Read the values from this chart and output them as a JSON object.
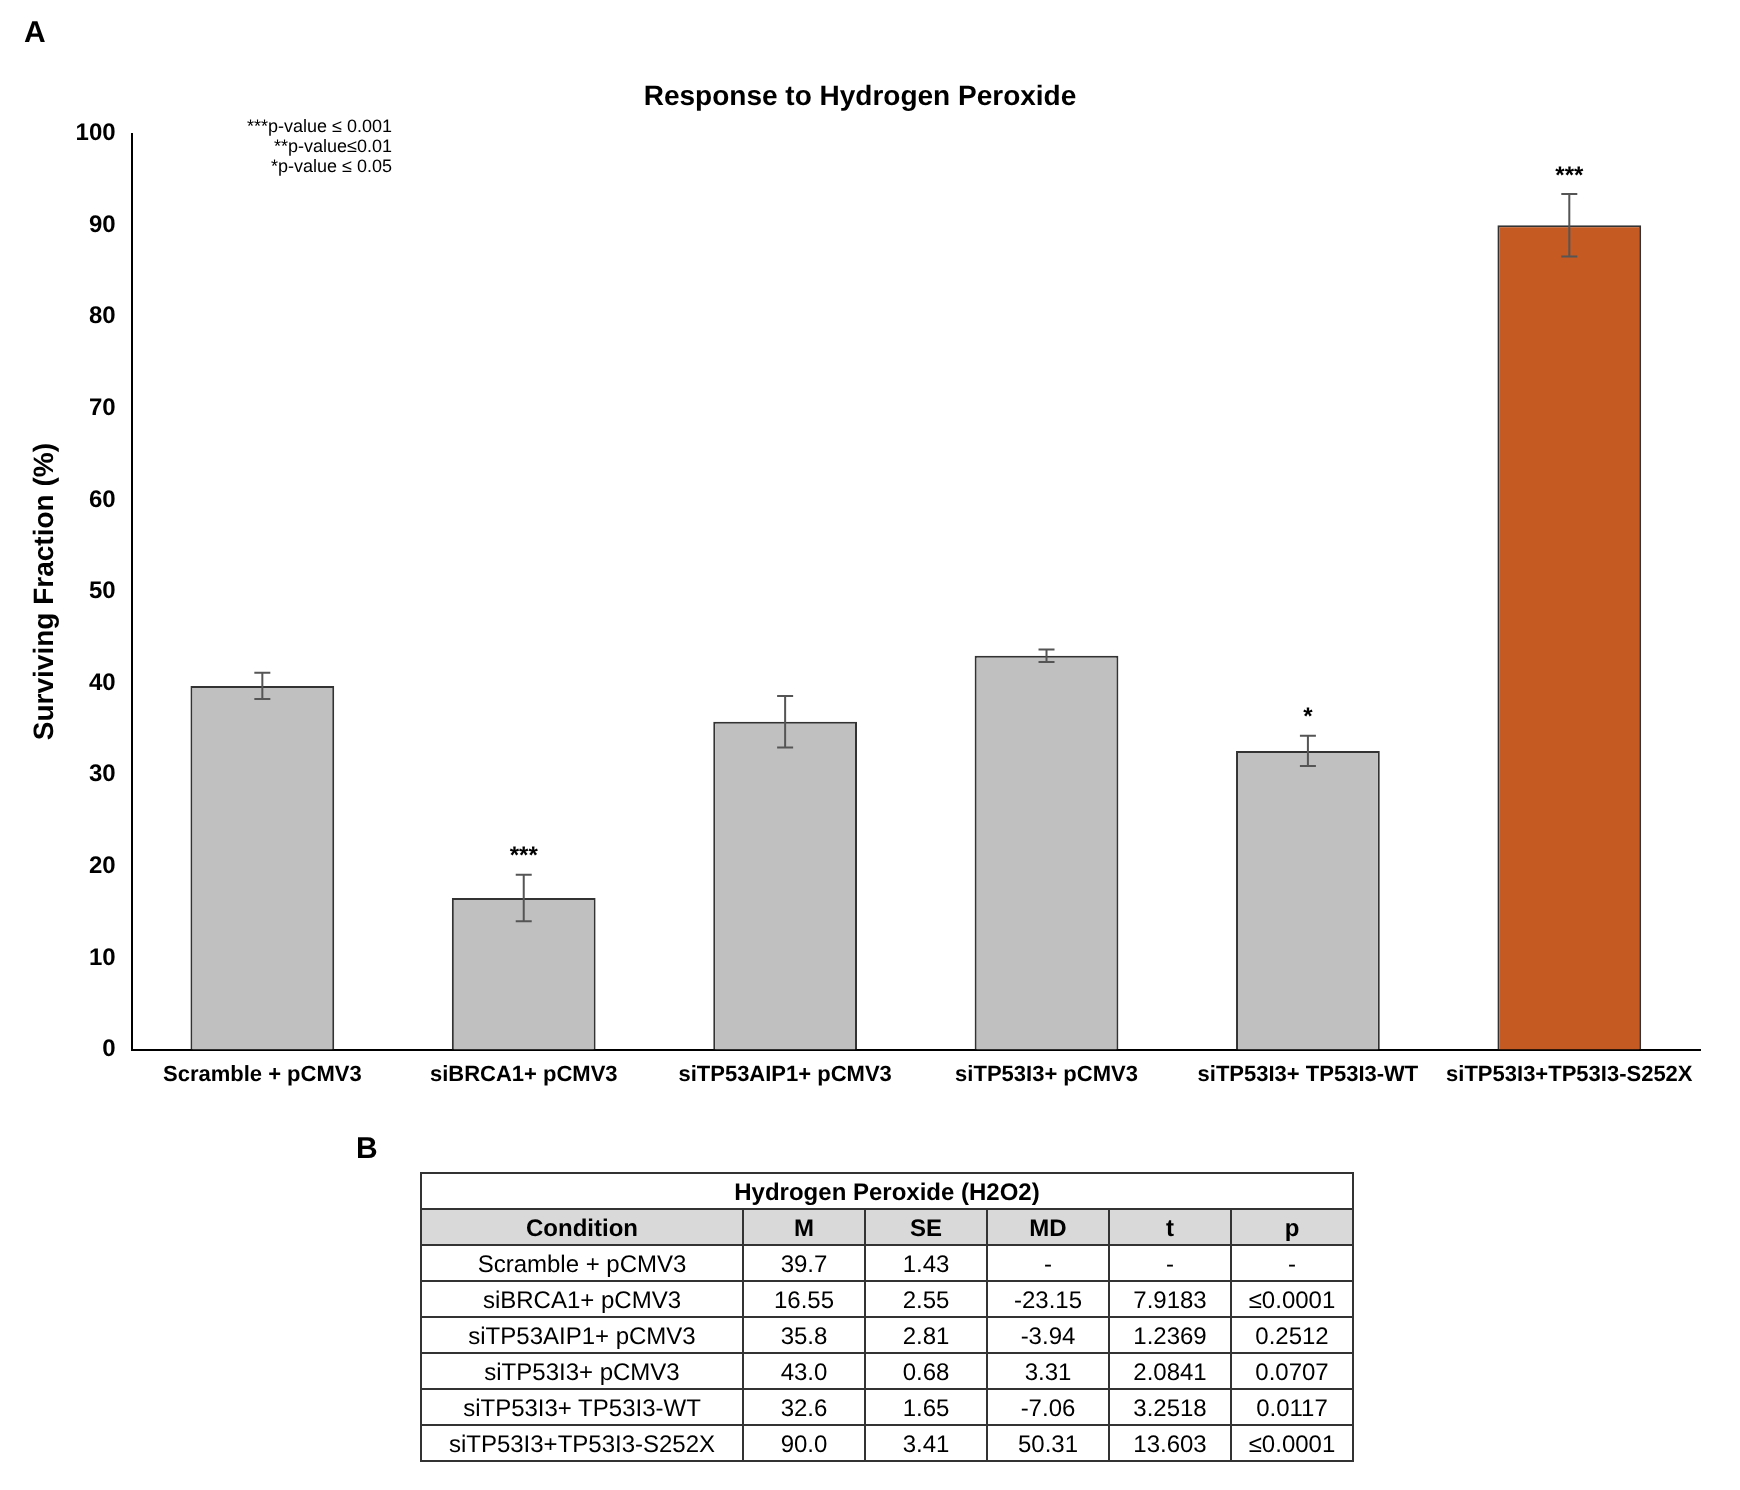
{
  "chart_data": {
    "type": "bar",
    "title": "Response to Hydrogen Peroxide",
    "ylabel": "Surviving Fraction (%)",
    "categories": [
      "Scramble + pCMV3",
      "siBRCA1+ pCMV3",
      "siTP53AIP1+ pCMV3",
      "siTP53I3+ pCMV3",
      "siTP53I3+ TP53I3-WT",
      "siTP53I3+TP53I3-S252X"
    ],
    "values": [
      39.7,
      16.55,
      35.8,
      43,
      32.6,
      90
    ],
    "errors": [
      1.43,
      2.55,
      2.81,
      0.68,
      1.65,
      3.41
    ],
    "colors": [
      "#c0c0c0",
      "#c0c0c0",
      "#c0c0c0",
      "#c0c0c0",
      "#c0c0c0",
      "#c55a22"
    ],
    "ylim": [
      0,
      100
    ],
    "yticks": [
      0,
      10,
      20,
      30,
      40,
      50,
      60,
      70,
      80,
      90,
      100
    ],
    "grid": false,
    "legend": false,
    "annotations": [
      "A",
      "***p-value ≤ 0.001",
      "**p-value≤0.01",
      "*p-value ≤ 0.05",
      "B",
      "Hydrogen Peroxide (H2O2)",
      "Condition",
      "M",
      "SE",
      "MD",
      "t",
      "p",
      "39.7",
      "1.43",
      "-",
      "-",
      "-",
      "16.55",
      "2.55",
      "-23.15",
      "7.9183",
      "≤0.0001",
      "35.8",
      "2.81",
      "-3.94",
      "1.2369",
      "0.2512",
      "43.0",
      "0.68",
      "3.31",
      "2.0841",
      "0.0707",
      "32.6",
      "1.65",
      "-7.06",
      "3.2518",
      "0.0117",
      "90.0",
      "3.41",
      "50.31",
      "13.603",
      "≤0.0001",
      {
        "text": "***",
        "x": "siBRCA1+ pCMV3",
        "y": 19.1
      },
      {
        "text": "*",
        "x": "siTP53I3+ TP53I3-WT",
        "y": 34.25
      },
      {
        "text": "***",
        "x": "siTP53I3+TP53I3-S252X",
        "y": 93.41
      }
    ]
  }
}
